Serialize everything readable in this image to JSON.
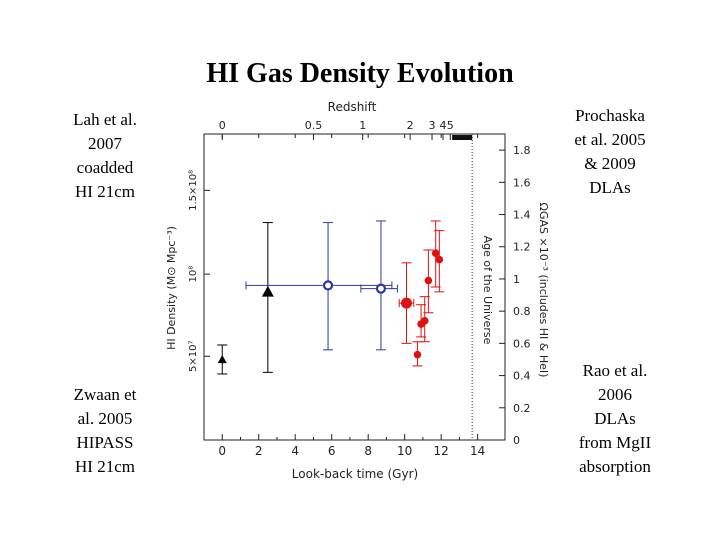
{
  "slide": {
    "title": "HI Gas Density Evolution",
    "notes": {
      "top_left": [
        "Lah et al.",
        "2007",
        "coadded",
        "HI 21cm"
      ],
      "bottom_left": [
        "Zwaan et",
        "al. 2005",
        "HIPASS",
        "HI 21cm"
      ],
      "top_right": [
        "Prochaska",
        "et al. 2005",
        "& 2009",
        "DLAs"
      ],
      "bottom_right": [
        "Rao et al.",
        "2006",
        "DLAs",
        "from MgII",
        "absorption"
      ]
    }
  },
  "chart_data": {
    "type": "scatter",
    "xlabel": "Look-back time (Gyr)",
    "ylabel_left": "HI Density (M⊙ Mpc⁻³)",
    "ylabel_right": "ΩGAS ×10⁻³ (includes HI & HeI)",
    "top_axis_label": "Redshift",
    "vertical_line_label": "Age of the Universe",
    "xlim": [
      -1,
      15.5
    ],
    "ylim_right": [
      0,
      1.9
    ],
    "x_ticks": [
      "0",
      "2",
      "4",
      "6",
      "8",
      "10",
      "12",
      "14"
    ],
    "x_tick_values": [
      0,
      2,
      4,
      6,
      8,
      10,
      12,
      14
    ],
    "right_ticks": [
      "0",
      "0.2",
      "0.4",
      "0.6",
      "0.8",
      "1",
      "1.2",
      "1.4",
      "1.6",
      "1.8"
    ],
    "right_tick_values": [
      0,
      0.2,
      0.4,
      0.6,
      0.8,
      1.0,
      1.2,
      1.4,
      1.6,
      1.8
    ],
    "left_ticks": [
      "5×10⁷",
      "10⁸",
      "1.5×10⁸"
    ],
    "left_tick_values_in_omega": [
      0.52,
      1.03,
      1.55
    ],
    "top_ticks": [
      "0",
      "0.5",
      "1",
      "2",
      "3",
      "4",
      "5"
    ],
    "top_tick_lookback_gyr": [
      0,
      5.0,
      7.7,
      10.3,
      11.5,
      12.1,
      12.5
    ],
    "age_of_universe_gyr": 13.7,
    "series": [
      {
        "marker": "triangle",
        "color": "#000000",
        "points": [
          {
            "x": 0.0,
            "y": 0.5,
            "ylo": 0.41,
            "yhi": 0.59,
            "xlo": 0.0,
            "xhi": 0.0
          },
          {
            "x": 2.5,
            "y": 0.92,
            "ylo": 0.42,
            "yhi": 1.35,
            "xlo": 2.5,
            "xhi": 2.5
          }
        ]
      },
      {
        "marker": "open-circle",
        "color": "#2b3aa0",
        "points": [
          {
            "x": 5.8,
            "y": 0.96,
            "ylo": 0.56,
            "yhi": 1.35,
            "xlo": 1.3,
            "xhi": 9.3
          },
          {
            "x": 8.7,
            "y": 0.94,
            "ylo": 0.56,
            "yhi": 1.36,
            "xlo": 7.6,
            "xhi": 9.6
          }
        ]
      },
      {
        "marker": "filled-circle",
        "color": "#dd1111",
        "points": [
          {
            "x": 10.1,
            "y": 0.85,
            "ylo": 0.6,
            "yhi": 1.1,
            "xlo": 9.7,
            "xhi": 10.5
          },
          {
            "x": 10.7,
            "y": 0.53,
            "ylo": 0.46,
            "yhi": 0.61,
            "xlo": 10.7,
            "xhi": 10.7
          },
          {
            "x": 10.9,
            "y": 0.72,
            "ylo": 0.64,
            "yhi": 0.84,
            "xlo": 10.9,
            "xhi": 10.9
          },
          {
            "x": 11.1,
            "y": 0.74,
            "ylo": 0.61,
            "yhi": 0.89,
            "xlo": 11.1,
            "xhi": 11.1
          },
          {
            "x": 11.3,
            "y": 0.99,
            "ylo": 0.79,
            "yhi": 1.18,
            "xlo": 11.3,
            "xhi": 11.3
          },
          {
            "x": 11.7,
            "y": 1.16,
            "ylo": 0.95,
            "yhi": 1.36,
            "xlo": 11.7,
            "xhi": 11.7
          },
          {
            "x": 11.9,
            "y": 1.12,
            "ylo": 0.92,
            "yhi": 1.3,
            "xlo": 11.9,
            "xhi": 11.9
          }
        ]
      }
    ]
  }
}
